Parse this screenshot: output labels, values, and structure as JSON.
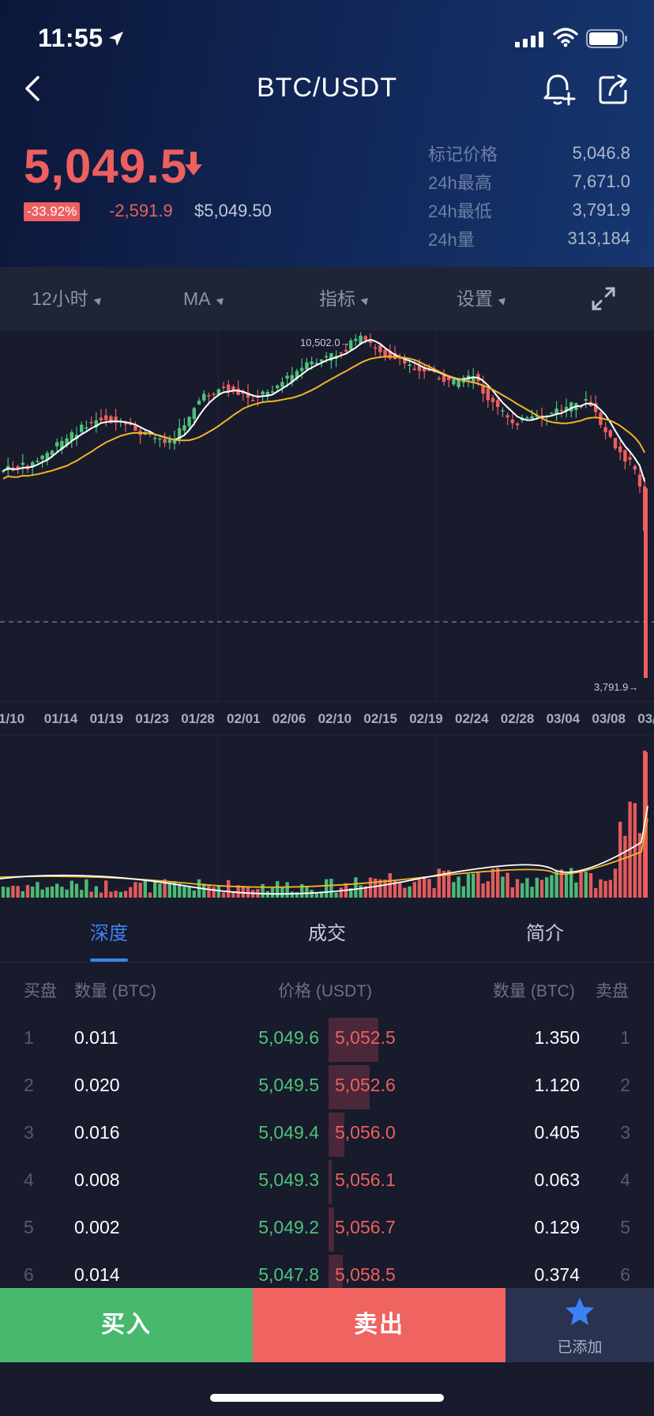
{
  "status_bar": {
    "time": "11:55"
  },
  "nav": {
    "title": "BTC/USDT"
  },
  "ticker": {
    "last_price": "5,049.5",
    "change_pct": "-33.92%",
    "change_abs": "-2,591.9",
    "usd_price": "$5,049.50",
    "stats": [
      {
        "label": "标记价格",
        "value": "5,046.8"
      },
      {
        "label": "24h最高",
        "value": "7,671.0"
      },
      {
        "label": "24h最低",
        "value": "3,791.9"
      },
      {
        "label": "24h量",
        "value": "313,184"
      }
    ]
  },
  "toolbar": {
    "interval": "12小时",
    "ma": "MA",
    "indicators": "指标",
    "settings": "设置"
  },
  "chart_data": {
    "type": "candlestick",
    "x_ticks": [
      "1/10",
      "01/14",
      "01/19",
      "01/23",
      "01/28",
      "02/01",
      "02/06",
      "02/10",
      "02/15",
      "02/19",
      "02/24",
      "02/28",
      "03/04",
      "03/08",
      "03/"
    ],
    "annotations": {
      "high": "10,502.0",
      "low": "3,791.9"
    },
    "overlays": [
      "MA (white)",
      "MA (orange)"
    ],
    "volume_panel": true
  },
  "tabs": [
    {
      "label": "深度",
      "active": true
    },
    {
      "label": "成交",
      "active": false
    },
    {
      "label": "简介",
      "active": false
    }
  ],
  "orderbook": {
    "headers": {
      "bid_side": "买盘",
      "bid_qty": "数量 (BTC)",
      "price": "价格 (USDT)",
      "ask_qty": "数量 (BTC)",
      "ask_side": "卖盘"
    },
    "rows": [
      {
        "idx": "1",
        "bid_qty": "0.011",
        "bid_price": "5,049.6",
        "ask_price": "5,052.5",
        "ask_qty": "1.350",
        "depth": 0.35
      },
      {
        "idx": "2",
        "bid_qty": "0.020",
        "bid_price": "5,049.5",
        "ask_price": "5,052.6",
        "ask_qty": "1.120",
        "depth": 0.29
      },
      {
        "idx": "3",
        "bid_qty": "0.016",
        "bid_price": "5,049.4",
        "ask_price": "5,056.0",
        "ask_qty": "0.405",
        "depth": 0.11
      },
      {
        "idx": "4",
        "bid_qty": "0.008",
        "bid_price": "5,049.3",
        "ask_price": "5,056.1",
        "ask_qty": "0.063",
        "depth": 0.02
      },
      {
        "idx": "5",
        "bid_qty": "0.002",
        "bid_price": "5,049.2",
        "ask_price": "5,056.7",
        "ask_qty": "0.129",
        "depth": 0.04
      },
      {
        "idx": "6",
        "bid_qty": "0.014",
        "bid_price": "5,047.8",
        "ask_price": "5,058.5",
        "ask_qty": "0.374",
        "depth": 0.1
      }
    ]
  },
  "actions": {
    "buy": "买入",
    "sell": "卖出",
    "favorite": "已添加"
  },
  "colors": {
    "up": "#4fc27a",
    "down": "#ee5f5f",
    "accent": "#3b82f6",
    "ma_white": "#ffffff",
    "ma_orange": "#f0b429"
  }
}
